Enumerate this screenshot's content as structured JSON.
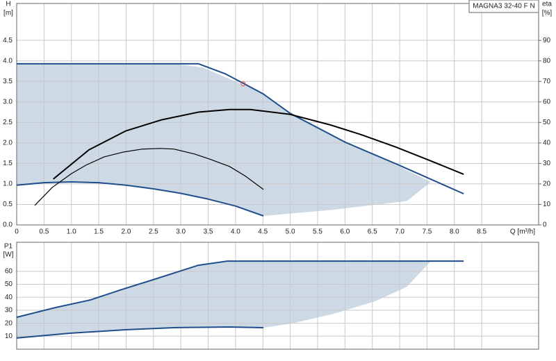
{
  "chart_data": [
    {
      "type": "line",
      "title": "MAGNA3 32-40 F N",
      "ylabel": "H",
      "yunit": "[m]",
      "y2label": "eta",
      "y2unit": "[%]",
      "xlabel": "Q [m³/h]",
      "xlim": [
        0,
        9.54
      ],
      "ylim": [
        0,
        5.4
      ],
      "y2lim": [
        0,
        108
      ],
      "xticks": [
        0,
        0.5,
        {
          "value": 1,
          "label": "1.0"
        },
        1.5,
        {
          "value": 2,
          "label": "2.0"
        },
        2.5,
        {
          "value": 3,
          "label": "3.0"
        },
        3.5,
        {
          "value": 4,
          "label": "4.0"
        },
        4.5,
        {
          "value": 5,
          "label": "5.0"
        },
        5.5,
        {
          "value": 6,
          "label": "6.0"
        },
        6.5,
        {
          "value": 7,
          "label": "7.0"
        },
        7.5,
        {
          "value": 8,
          "label": "8.0"
        },
        8.5
      ],
      "yticks": [
        {
          "value": 0,
          "label": "0.0"
        },
        0.5,
        {
          "value": 1,
          "label": "1.0"
        },
        1.5,
        {
          "value": 2,
          "label": "2.0"
        },
        2.5,
        {
          "value": 3,
          "label": "3.0"
        },
        3.5,
        {
          "value": 4,
          "label": "4.0"
        },
        4.5
      ],
      "y2ticks": [
        0,
        10,
        20,
        30,
        40,
        50,
        60,
        70,
        80,
        90
      ],
      "grid": true,
      "series": [
        {
          "color": "#cdd9e5",
          "fill": true,
          "x": [
            0,
            2.87,
            3.4,
            3.82,
            4.5,
            5,
            6,
            7,
            7.57,
            7.13,
            6.55,
            5.79,
            4.51,
            4,
            3.5,
            3,
            2.5,
            2,
            1.5,
            1,
            0.5,
            0
          ],
          "values": [
            3.93,
            3.93,
            3.84,
            3.6,
            3.22,
            2.72,
            2.02,
            1.42,
            1.05,
            0.58,
            0.49,
            0.37,
            0.22,
            0.46,
            0.63,
            0.77,
            0.88,
            0.97,
            1.03,
            1.05,
            1.03,
            0.97
          ]
        },
        {
          "color": "#1f4e8c",
          "x": [
            0,
            3.32,
            3.82,
            4.5,
            5,
            6,
            7,
            8.17
          ],
          "values": [
            3.93,
            3.93,
            3.68,
            3.2,
            2.72,
            2.02,
            1.45,
            0.76
          ]
        },
        {
          "color": "#1f4e8c",
          "x": [
            0,
            0.5,
            1,
            1.5,
            2,
            2.5,
            3,
            3.5,
            4,
            4.51
          ],
          "values": [
            0.97,
            1.03,
            1.05,
            1.03,
            0.97,
            0.88,
            0.77,
            0.63,
            0.46,
            0.22
          ]
        },
        {
          "color": "#000000",
          "axis": "y2",
          "x": [
            0.67,
            1.32,
            1.99,
            2.64,
            3.32,
            3.89,
            4.27,
            5,
            5.73,
            6.3,
            6.93,
            7.57,
            8.17
          ],
          "values": [
            22.4,
            36.6,
            45.8,
            51.2,
            55,
            56.3,
            56.3,
            53.9,
            48.8,
            44,
            38,
            31.2,
            24.7
          ]
        },
        {
          "color": "#000000",
          "axis": "y2",
          "x": [
            0.33,
            0.65,
            1,
            1.27,
            1.6,
            1.96,
            2.3,
            2.62,
            2.87,
            3.25,
            3.55,
            3.89,
            4.17,
            4.51
          ],
          "values": [
            9.5,
            18.3,
            25,
            29.2,
            33.2,
            35.6,
            37,
            37.3,
            37,
            34.6,
            31.9,
            28.5,
            24,
            17.3
          ]
        }
      ],
      "point": {
        "x": 4.14,
        "y": 3.44,
        "color": "#e84a4a"
      }
    },
    {
      "type": "line",
      "ylabel": "P1",
      "yunit": "[W]",
      "xlim": [
        0,
        9.54
      ],
      "ylim": [
        0,
        82.4
      ],
      "yticks": [
        10,
        20,
        30,
        40,
        50,
        60
      ],
      "grid": true,
      "series": [
        {
          "color": "#cdd9e5",
          "fill": true,
          "x": [
            0,
            0.71,
            1.35,
            1.92,
            2.49,
            3.32,
            3.85,
            7.57,
            7.13,
            6.55,
            5.79,
            5.03,
            4.51,
            3.89,
            2.87,
            1.98,
            0.97,
            0
          ],
          "values": [
            24.6,
            32.1,
            38,
            46,
            53.5,
            64.7,
            67.9,
            67.9,
            48.1,
            36.9,
            27.3,
            19.8,
            16.6,
            17.1,
            16.6,
            15,
            12.3,
            8.6
          ]
        },
        {
          "color": "#1f4e8c",
          "x": [
            0,
            0.71,
            1.35,
            1.92,
            2.49,
            3.32,
            3.85,
            8.17
          ],
          "values": [
            24.6,
            32.1,
            38,
            46,
            53.5,
            64.7,
            67.9,
            67.9
          ]
        },
        {
          "color": "#1f4e8c",
          "x": [
            0,
            0.97,
            1.98,
            2.87,
            3.89,
            4.51
          ],
          "values": [
            8.6,
            12.3,
            15,
            16.6,
            17.1,
            16.6
          ]
        }
      ]
    }
  ]
}
